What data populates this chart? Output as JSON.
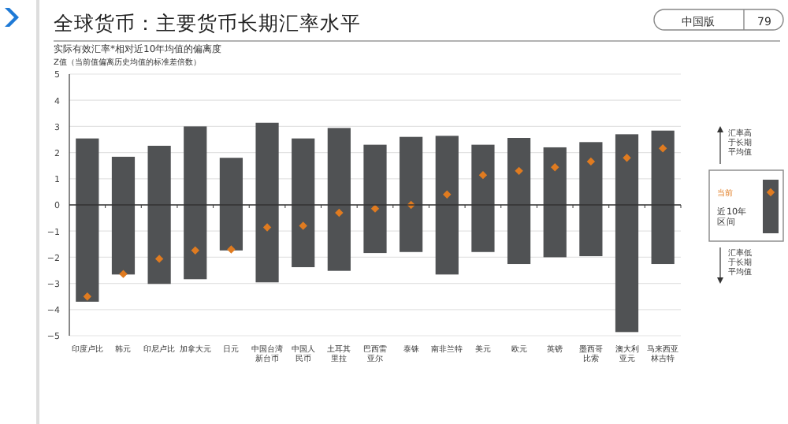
{
  "chart_data": {
    "type": "bar",
    "title": "全球货币：主要货币长期汇率水平",
    "subtitle": "实际有效汇率*相对近10年均值的偏离度",
    "ylabel": "Z值（当前值偏离历史均值的标准差倍数）",
    "categories": [
      "印度卢比",
      "韩元",
      "印尼卢比",
      "加拿大元",
      "日元",
      "中国台湾新台币",
      "中国人民币",
      "土耳其里拉",
      "巴西雷亚尔",
      "泰铢",
      "南非兰特",
      "美元",
      "欧元",
      "英镑",
      "墨西哥比索",
      "澳大利亚元",
      "马来西亚林吉特"
    ],
    "series": [
      {
        "name": "近10年区间",
        "color": "#505254",
        "base": [
          -3.7,
          -2.66,
          -3.02,
          -2.84,
          -1.74,
          -2.96,
          -2.38,
          -2.52,
          -1.84,
          -1.8,
          -2.66,
          -1.8,
          -2.26,
          -2.0,
          -1.96,
          -4.86,
          -2.26
        ],
        "values": [
          6.24,
          4.5,
          5.28,
          5.84,
          3.54,
          6.1,
          4.92,
          5.46,
          4.14,
          4.4,
          5.3,
          4.1,
          4.82,
          4.2,
          4.36,
          7.56,
          5.1
        ]
      },
      {
        "name": "当前",
        "type": "scatter",
        "color": "#e07b20",
        "marker": "diamond",
        "values": [
          -3.5,
          -2.64,
          -2.06,
          -1.74,
          -1.7,
          -0.86,
          -0.8,
          -0.3,
          -0.14,
          0,
          0.4,
          1.14,
          1.3,
          1.44,
          1.66,
          1.8,
          2.16
        ]
      }
    ],
    "ylim": [
      -5,
      5
    ],
    "yticks": [
      -5,
      -4,
      -3,
      -2,
      -1,
      0,
      1,
      2,
      3,
      4,
      5
    ],
    "grid": "y",
    "legend": "right",
    "annotations": [
      "中国版",
      "79",
      "汇率高于长期平均值",
      "汇率低于长期平均值"
    ]
  }
}
